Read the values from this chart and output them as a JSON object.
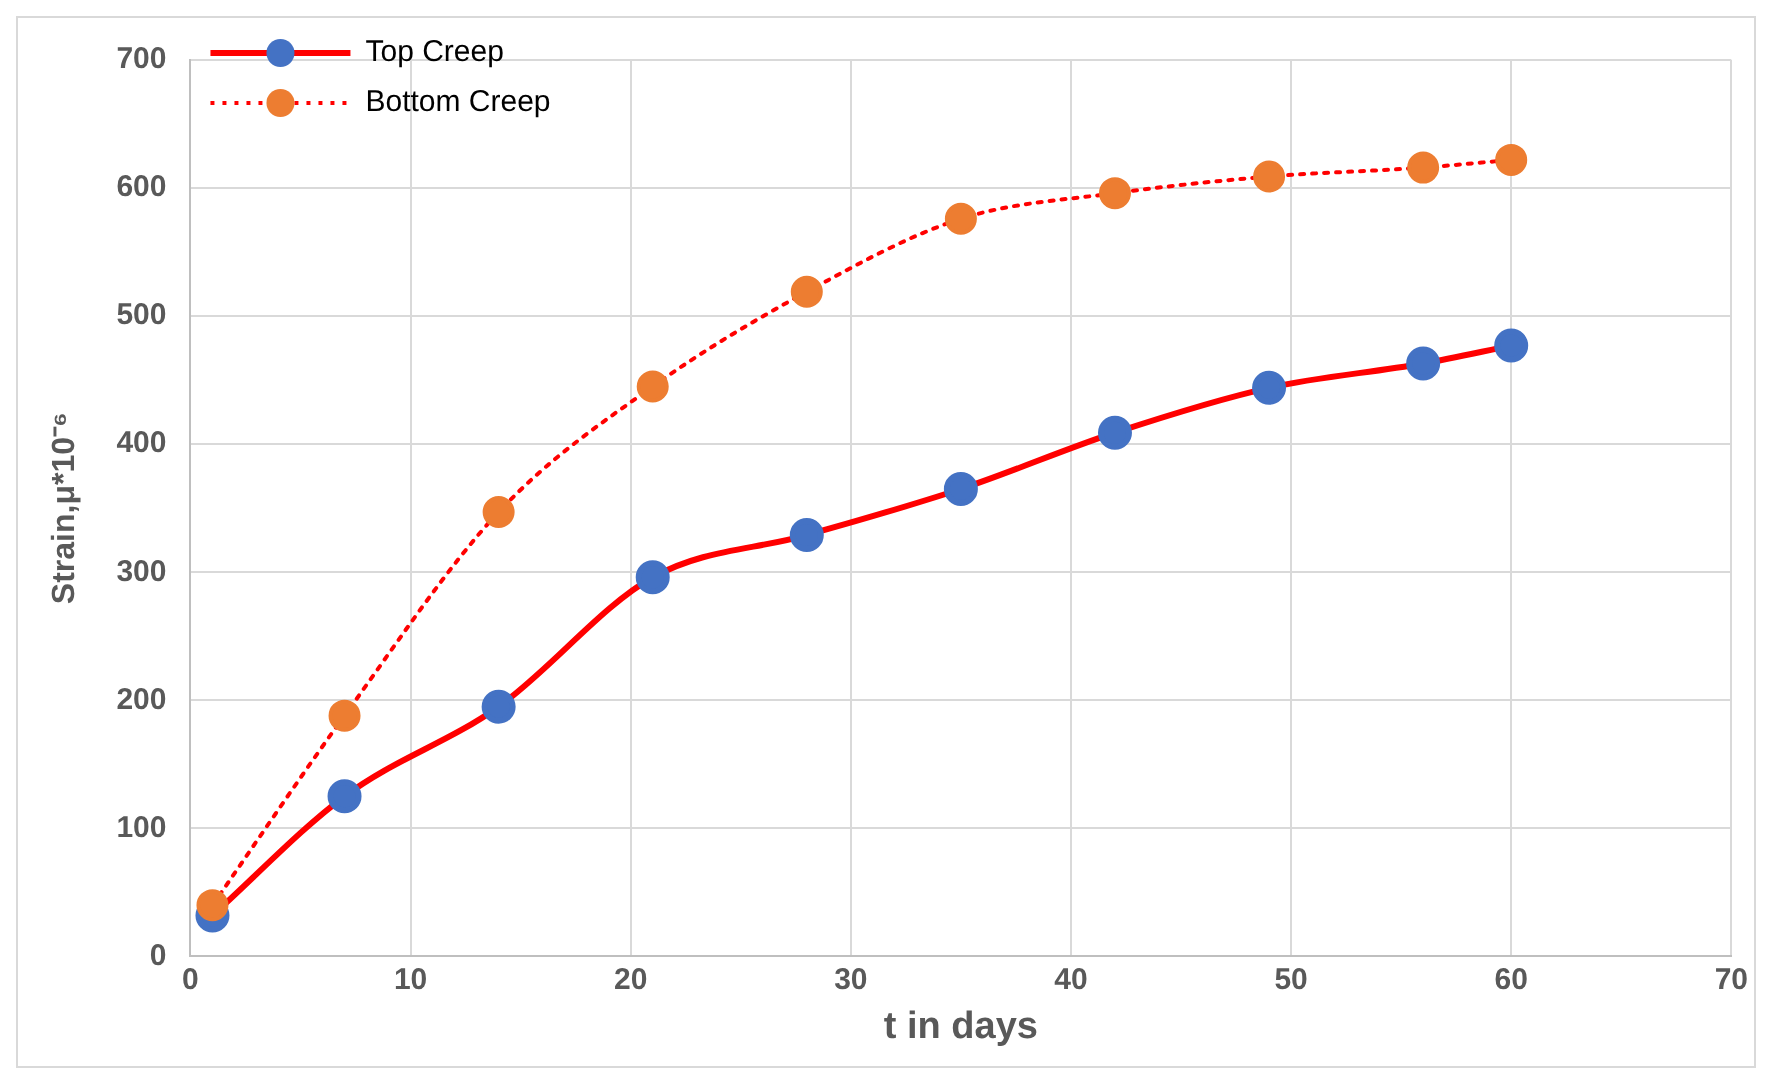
{
  "chart_data": {
    "type": "line",
    "xlabel": "t in days",
    "ylabel": "Strain,μ*10⁻⁶",
    "x": [
      1,
      7,
      14,
      21,
      28,
      35,
      42,
      49,
      56,
      60
    ],
    "series": [
      {
        "name": "Top Creep",
        "color": "#ff0000",
        "colors": [
          "#4472c4",
          "#4472c4",
          "#4472c4",
          "#4472c4",
          "#4472c4",
          "#4472c4",
          "#4472c4",
          "#4472c4",
          "#4472c4",
          "#4472c4"
        ],
        "line_style": "solid",
        "values": [
          32,
          125,
          195,
          296,
          329,
          365,
          409,
          444,
          463,
          477
        ]
      },
      {
        "name": "Bottom Creep",
        "color": "#ff0000",
        "colors": [
          "#ed7d31",
          "#ed7d31",
          "#ed7d31",
          "#ed7d31",
          "#ed7d31",
          "#ed7d31",
          "#ed7d31",
          "#ed7d31",
          "#ed7d31",
          "#ed7d31"
        ],
        "line_style": "dotted",
        "values": [
          40,
          188,
          347,
          445,
          519,
          576,
          596,
          609,
          616,
          622
        ]
      }
    ],
    "xlim": [
      0,
      70
    ],
    "xticks": [
      0,
      10,
      20,
      30,
      40,
      50,
      60,
      70
    ],
    "ylim": [
      0,
      700
    ],
    "yticks": [
      0,
      100,
      200,
      300,
      400,
      500,
      600,
      700
    ],
    "grid": true,
    "legend": "top left",
    "marker": "circle"
  }
}
